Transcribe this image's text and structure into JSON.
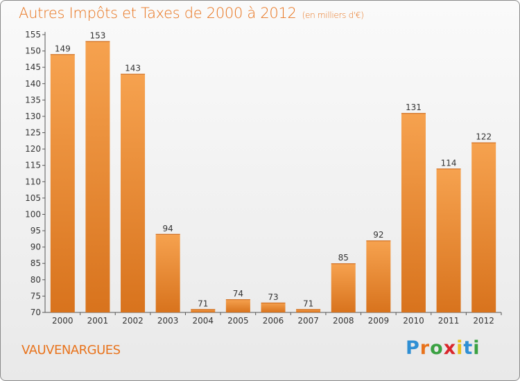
{
  "header": {
    "title": "Autres Impôts et Taxes de 2000 à 2012",
    "subtitle": "(en milliers d'€)"
  },
  "footer": {
    "commune": "VAUVENARGUES",
    "logo": "Proxiti"
  },
  "colors": {
    "bar_top": "#f6a24f",
    "bar_bottom": "#d8731d",
    "accent": "#e8731c"
  },
  "chart_data": {
    "type": "bar",
    "title": "Autres Impôts et Taxes de 2000 à 2012",
    "subtitle": "(en milliers d'€)",
    "xlabel": "",
    "ylabel": "",
    "categories": [
      "2000",
      "2001",
      "2002",
      "2003",
      "2004",
      "2005",
      "2006",
      "2007",
      "2008",
      "2009",
      "2010",
      "2011",
      "2012"
    ],
    "values": [
      149,
      153,
      143,
      94,
      71,
      74,
      73,
      71,
      85,
      92,
      131,
      114,
      122
    ],
    "ylim": [
      70,
      155
    ],
    "ytick_step": 5,
    "grid": false,
    "data_labels": true
  }
}
